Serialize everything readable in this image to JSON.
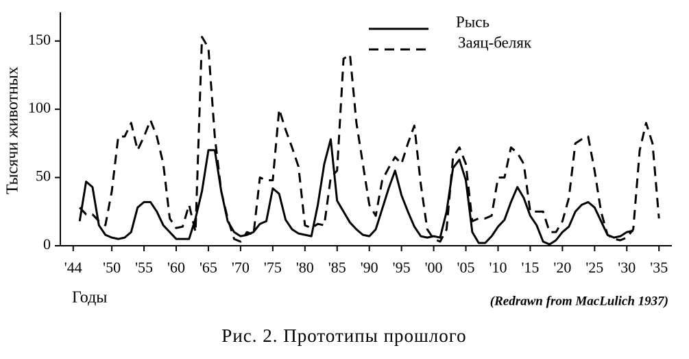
{
  "chart_data": {
    "type": "line",
    "y_label": "Тысячи животных",
    "x_label": "Годы",
    "annotation": "(Redrawn from MacLulich 1937)",
    "caption": "Рис. 2. Прототипы прошлого",
    "x": [
      1845,
      1846,
      1847,
      1848,
      1849,
      1850,
      1851,
      1852,
      1853,
      1854,
      1855,
      1856,
      1857,
      1858,
      1859,
      1860,
      1861,
      1862,
      1863,
      1864,
      1865,
      1866,
      1867,
      1868,
      1869,
      1870,
      1871,
      1872,
      1873,
      1874,
      1875,
      1876,
      1877,
      1878,
      1879,
      1880,
      1881,
      1882,
      1883,
      1884,
      1885,
      1886,
      1887,
      1888,
      1889,
      1890,
      1891,
      1892,
      1893,
      1894,
      1895,
      1896,
      1897,
      1898,
      1899,
      1900,
      1901,
      1902,
      1903,
      1904,
      1905,
      1906,
      1907,
      1908,
      1909,
      1910,
      1911,
      1912,
      1913,
      1914,
      1915,
      1916,
      1917,
      1918,
      1919,
      1920,
      1921,
      1922,
      1923,
      1924,
      1925,
      1926,
      1927,
      1928,
      1929,
      1930,
      1931,
      1932,
      1933,
      1934,
      1935
    ],
    "series": [
      {
        "name": "Рысь",
        "color": "#000000",
        "dash": false,
        "values": [
          18,
          47,
          43,
          15,
          8,
          6,
          5,
          6,
          10,
          28,
          32,
          32,
          25,
          15,
          10,
          5,
          5,
          5,
          20,
          40,
          70,
          70,
          40,
          18,
          10,
          7,
          8,
          10,
          16,
          18,
          42,
          38,
          19,
          12,
          9,
          8,
          7,
          30,
          60,
          78,
          33,
          25,
          17,
          12,
          8,
          7,
          12,
          27,
          42,
          55,
          37,
          25,
          14,
          7,
          6,
          7,
          6,
          25,
          57,
          63,
          48,
          10,
          2,
          2,
          7,
          14,
          19,
          32,
          43,
          35,
          22,
          15,
          3,
          1,
          4,
          10,
          14,
          25,
          30,
          32,
          28,
          18,
          8,
          6,
          7,
          10,
          11,
          null,
          null,
          null,
          null
        ]
      },
      {
        "name": "Заяц-беляк",
        "color": "#000000",
        "dash": true,
        "values": [
          28,
          23,
          23,
          18,
          15,
          40,
          80,
          80,
          90,
          70,
          80,
          92,
          80,
          60,
          20,
          13,
          14,
          30,
          10,
          153,
          145,
          80,
          40,
          20,
          5,
          3,
          10,
          8,
          50,
          48,
          48,
          100,
          85,
          72,
          58,
          15,
          13,
          16,
          15,
          50,
          55,
          137,
          140,
          90,
          60,
          30,
          22,
          48,
          57,
          65,
          60,
          75,
          88,
          45,
          12,
          5,
          3,
          12,
          65,
          72,
          60,
          18,
          20,
          20,
          22,
          50,
          50,
          72,
          68,
          60,
          25,
          25,
          25,
          10,
          10,
          18,
          35,
          75,
          78,
          80,
          55,
          25,
          8,
          5,
          4,
          6,
          12,
          70,
          90,
          75,
          20
        ]
      }
    ],
    "xlim": [
      1842,
      1937
    ],
    "xticks": [
      {
        "value": 1844,
        "label": "'44"
      },
      {
        "value": 1850,
        "label": "'50"
      },
      {
        "value": 1855,
        "label": "'55"
      },
      {
        "value": 1860,
        "label": "'60"
      },
      {
        "value": 1865,
        "label": "'65"
      },
      {
        "value": 1870,
        "label": "'70"
      },
      {
        "value": 1875,
        "label": "'75"
      },
      {
        "value": 1880,
        "label": "'80"
      },
      {
        "value": 1885,
        "label": "'85"
      },
      {
        "value": 1890,
        "label": "'90"
      },
      {
        "value": 1895,
        "label": "'95"
      },
      {
        "value": 1900,
        "label": "'00"
      },
      {
        "value": 1905,
        "label": "'05"
      },
      {
        "value": 1910,
        "label": "'10"
      },
      {
        "value": 1915,
        "label": "'15"
      },
      {
        "value": 1920,
        "label": "'20"
      },
      {
        "value": 1925,
        "label": "'25"
      },
      {
        "value": 1930,
        "label": "'30"
      },
      {
        "value": 1935,
        "label": "'35"
      }
    ],
    "ylim": [
      0,
      170
    ],
    "yticks": [
      0,
      50,
      100,
      150
    ],
    "grid": false,
    "legend": "top-right"
  }
}
